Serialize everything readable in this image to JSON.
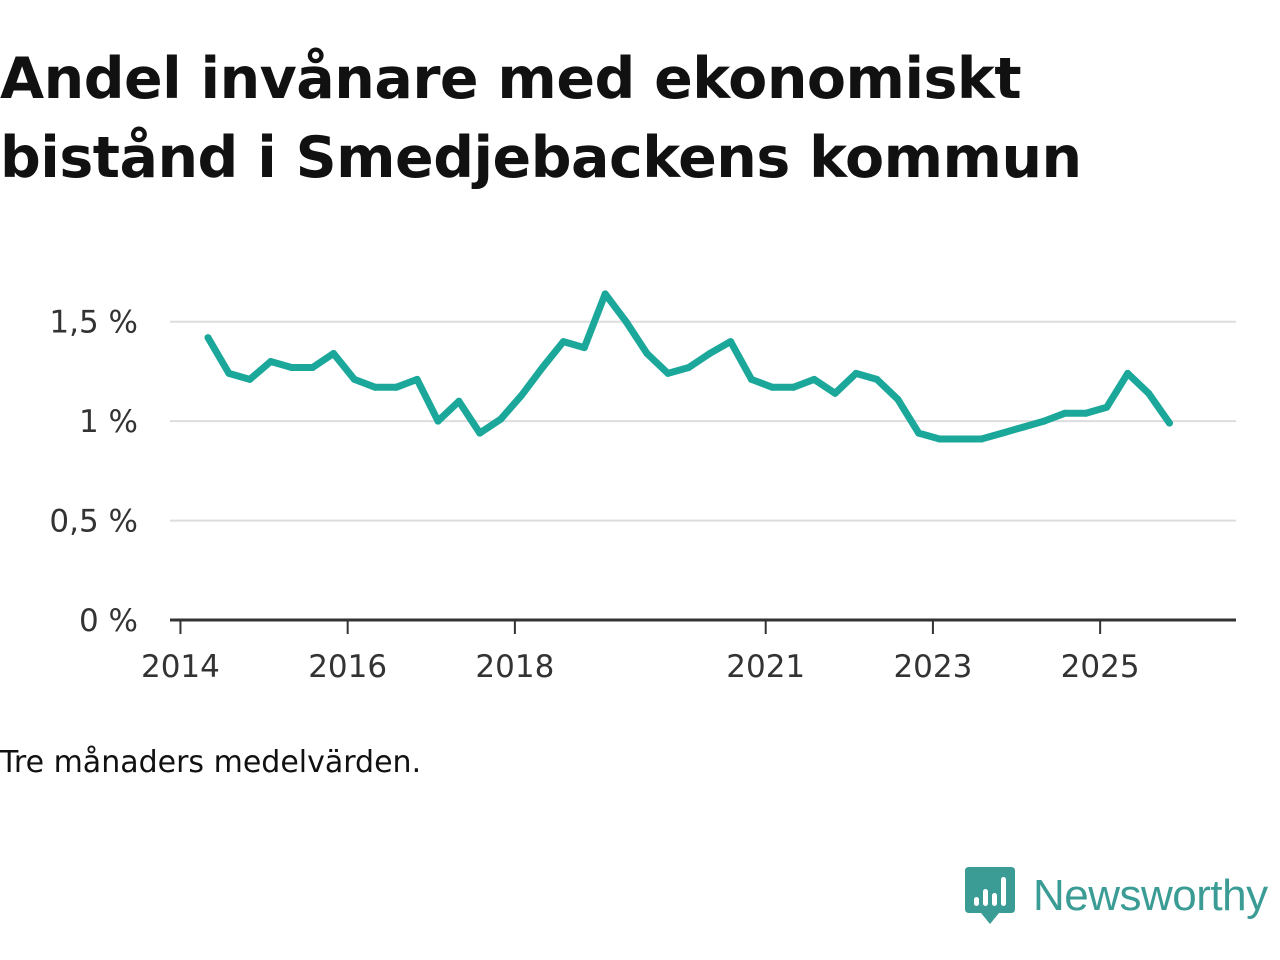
{
  "title": "Andel invånare med ekonomiskt bistånd i Smedjebackens kommun",
  "subtitle": "Tre månaders medelvärden.",
  "brand": {
    "name": "Newsworthy",
    "color": "#3a9c94",
    "icon": "newsworthy-logo-icon"
  },
  "colors": {
    "line": "#1ba89a",
    "grid": "#dddddd",
    "axis": "#333333"
  },
  "chart_data": {
    "type": "line",
    "title": "Andel invånare med ekonomiskt bistånd i Smedjebackens kommun",
    "xlabel": "",
    "ylabel": "",
    "ylim": [
      0,
      1.75
    ],
    "xlim": [
      2013.875,
      2026.625
    ],
    "y_ticks": [
      {
        "value": 0,
        "label": "0 %"
      },
      {
        "value": 0.5,
        "label": "0,5 %"
      },
      {
        "value": 1,
        "label": "1 %"
      },
      {
        "value": 1.5,
        "label": "1,5 %"
      }
    ],
    "x_ticks": [
      {
        "value": 2014,
        "label": "2014"
      },
      {
        "value": 2016,
        "label": "2016"
      },
      {
        "value": 2018,
        "label": "2018"
      },
      {
        "value": 2021,
        "label": "2021"
      },
      {
        "value": 2023,
        "label": "2023"
      },
      {
        "value": 2025,
        "label": "2025"
      }
    ],
    "grid": true,
    "series": [
      {
        "name": "Andel invånare med ekonomiskt bistånd",
        "x": [
          2014.33,
          2014.58,
          2014.83,
          2015.08,
          2015.33,
          2015.58,
          2015.83,
          2016.08,
          2016.33,
          2016.58,
          2016.83,
          2017.08,
          2017.33,
          2017.58,
          2017.83,
          2018.08,
          2018.33,
          2018.58,
          2018.83,
          2019.08,
          2019.33,
          2019.58,
          2019.83,
          2020.08,
          2020.33,
          2020.58,
          2020.83,
          2021.08,
          2021.33,
          2021.58,
          2021.83,
          2022.08,
          2022.33,
          2022.58,
          2022.83,
          2023.08,
          2023.33,
          2023.58,
          2023.83,
          2024.08,
          2024.33,
          2024.58,
          2024.83,
          2025.08,
          2025.33,
          2025.58,
          2025.83
        ],
        "values": [
          1.42,
          1.24,
          1.21,
          1.3,
          1.27,
          1.27,
          1.34,
          1.21,
          1.17,
          1.17,
          1.21,
          1.0,
          1.1,
          0.94,
          1.01,
          1.13,
          1.27,
          1.4,
          1.37,
          1.64,
          1.5,
          1.34,
          1.24,
          1.27,
          1.34,
          1.4,
          1.21,
          1.17,
          1.17,
          1.21,
          1.14,
          1.24,
          1.21,
          1.11,
          0.94,
          0.91,
          0.91,
          0.91,
          0.94,
          0.97,
          1.0,
          1.04,
          1.04,
          1.07,
          1.24,
          1.14,
          0.99
        ]
      }
    ]
  }
}
